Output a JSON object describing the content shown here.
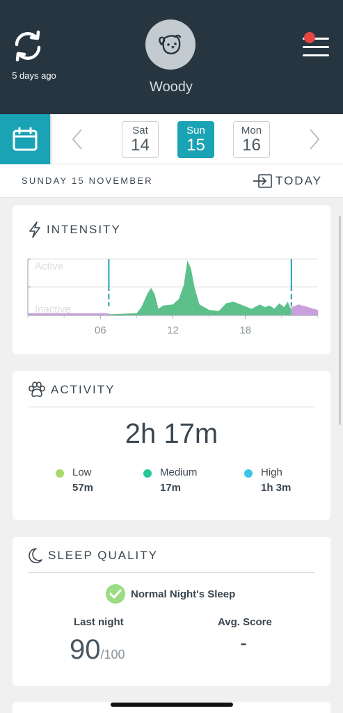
{
  "header": {
    "sync_label": "5 days ago",
    "pet_name": "Woody",
    "avatar_icon": "dog-icon",
    "notification_color": "#e84545"
  },
  "date_strip": {
    "days": [
      {
        "name": "Sat",
        "num": "14"
      },
      {
        "name": "Sun",
        "num": "15"
      },
      {
        "name": "Mon",
        "num": "16"
      }
    ],
    "selected_index": 1,
    "accent_color": "#1aa3b4"
  },
  "date_bar": {
    "date_text": "SUNDAY 15 NOVEMBER",
    "today_label": "TODAY"
  },
  "intensity": {
    "title": "INTENSITY",
    "chart_data": {
      "type": "area",
      "y_labels": [
        "Active",
        "Inactive"
      ],
      "x_ticks": [
        "06",
        "12",
        "18"
      ],
      "x_range": [
        0,
        24
      ],
      "marker_lines_hours": [
        6.7,
        21.8
      ],
      "series": [
        {
          "color": "#5cc08a",
          "x": [
            6.7,
            9.0,
            9.4,
            9.9,
            10.2,
            10.5,
            10.8,
            11.2,
            12.0,
            12.5,
            12.9,
            13.2,
            13.5,
            13.8,
            14.2,
            15.0,
            15.8,
            16.4,
            17.0,
            17.6,
            18.5,
            19.2,
            19.6,
            20.0,
            20.4,
            20.8,
            21.2,
            21.5,
            21.8
          ],
          "y": [
            0.02,
            0.04,
            0.15,
            0.4,
            0.5,
            0.38,
            0.12,
            0.18,
            0.2,
            0.3,
            0.55,
            1.0,
            0.85,
            0.5,
            0.2,
            0.1,
            0.08,
            0.22,
            0.25,
            0.2,
            0.12,
            0.2,
            0.15,
            0.18,
            0.12,
            0.22,
            0.15,
            0.25,
            0.1
          ]
        },
        {
          "color": "#c9a0dc",
          "x": [
            0,
            6.7
          ],
          "y": [
            0.03,
            0.03
          ],
          "tail_x": [
            21.8,
            22.4,
            23.2,
            24
          ],
          "tail_y": [
            0.15,
            0.2,
            0.15,
            0.1
          ]
        }
      ]
    }
  },
  "activity": {
    "title": "ACTIVITY",
    "total": "2h 17m",
    "levels": [
      {
        "name": "Low",
        "value": "57m",
        "color": "#a8d86e"
      },
      {
        "name": "Medium",
        "value": "17m",
        "color": "#26c89a"
      },
      {
        "name": "High",
        "value": "1h 3m",
        "color": "#3cc4e8"
      }
    ]
  },
  "sleep": {
    "title": "SLEEP QUALITY",
    "status": "Normal Night's Sleep",
    "last_night_label": "Last night",
    "last_night_score": "90",
    "last_night_max": "/100",
    "avg_label": "Avg. Score",
    "avg_value": "-"
  }
}
